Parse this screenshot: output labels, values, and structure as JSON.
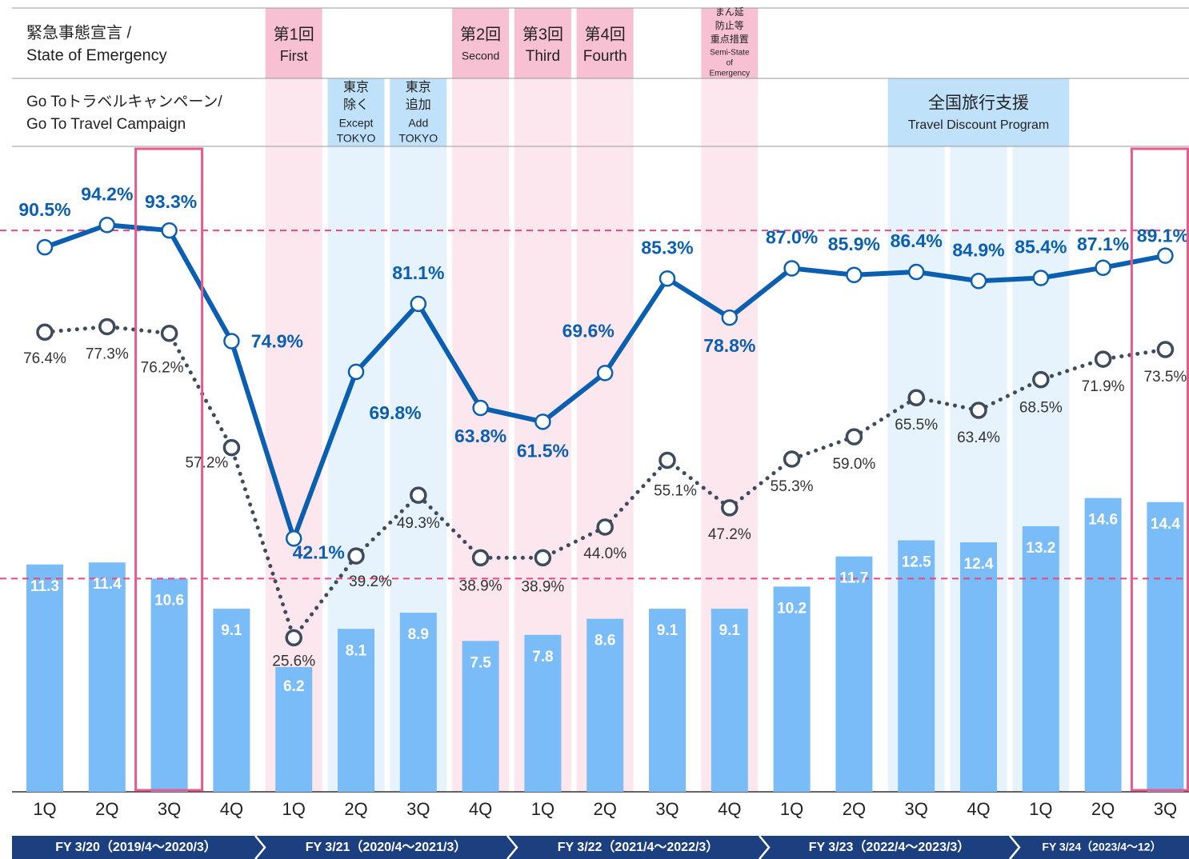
{
  "chart_data": {
    "type": "combo",
    "header": {
      "emergency_label": [
        "緊急事態宣言 /",
        "State of Emergency"
      ],
      "campaign_label": [
        "Go Toトラベルキャンペーン/",
        "Go To Travel Campaign"
      ],
      "emergency": [
        [
          "第1回",
          "First"
        ],
        [
          "第2回",
          "Second"
        ],
        [
          "第3回",
          "Third"
        ],
        [
          "第4回",
          "Fourth"
        ],
        [
          "まん延",
          "防止等",
          "重点措置",
          "Semi-State",
          "of",
          "Emergency"
        ]
      ],
      "campaign": [
        [
          "東京",
          "除く",
          "Except",
          "TOKYO"
        ],
        [
          "東京",
          "追加",
          "Add",
          "TOKYO"
        ],
        [
          "全国旅行支援",
          "Travel Discount Program"
        ]
      ]
    },
    "categories": [
      "1Q",
      "2Q",
      "3Q",
      "4Q",
      "1Q",
      "2Q",
      "3Q",
      "4Q",
      "1Q",
      "2Q",
      "3Q",
      "4Q",
      "1Q",
      "2Q",
      "3Q",
      "4Q",
      "1Q",
      "2Q",
      "3Q"
    ],
    "fiscal_years": [
      "FY 3/20（2019/4～2020/3）",
      "FY 3/21（2020/4～2021/3）",
      "FY 3/22（2021/4～2022/3）",
      "FY 3/23（2022/4～2023/3）",
      "FY 3/24（2023/4～12）"
    ],
    "ylim": [
      0,
      107
    ],
    "y2lim": [
      0,
      32
    ],
    "series": [
      {
        "type": "bar",
        "axis": "y2",
        "color": "#79bcf7",
        "values": [
          11.3,
          11.4,
          10.6,
          9.1,
          6.2,
          8.1,
          8.9,
          7.5,
          7.8,
          8.6,
          9.1,
          9.1,
          10.2,
          11.7,
          12.5,
          12.4,
          13.2,
          14.6,
          14.4
        ]
      },
      {
        "type": "line",
        "style": "solid",
        "color": "#0b5fb1",
        "values": [
          90.5,
          94.2,
          93.3,
          74.9,
          42.1,
          69.8,
          81.1,
          63.8,
          61.5,
          69.6,
          85.3,
          78.8,
          87.0,
          85.9,
          86.4,
          84.9,
          85.4,
          87.1,
          89.1
        ],
        "value_labels": [
          "90.5%",
          "94.2%",
          "93.3%",
          "74.9%",
          "42.1%",
          "69.8%",
          "81.1%",
          "63.8%",
          "61.5%",
          "69.6%",
          "85.3%",
          "78.8%",
          "87.0%",
          "85.9%",
          "86.4%",
          "84.9%",
          "85.4%",
          "87.1%",
          "89.1%"
        ]
      },
      {
        "type": "line",
        "style": "dotted",
        "color": "#3e4b5d",
        "values": [
          76.4,
          77.3,
          76.2,
          57.2,
          25.6,
          39.2,
          49.3,
          38.9,
          38.9,
          44.0,
          55.1,
          47.2,
          55.3,
          59.0,
          65.5,
          63.4,
          68.5,
          71.9,
          73.5
        ],
        "value_labels": [
          "76.4%",
          "77.3%",
          "76.2%",
          "57.2%",
          "25.6%",
          "39.2%",
          "49.3%",
          "38.9%",
          "38.9%",
          "44.0%",
          "55.1%",
          "47.2%",
          "55.3%",
          "59.0%",
          "65.5%",
          "63.4%",
          "68.5%",
          "71.9%",
          "73.5%"
        ]
      }
    ],
    "reference_color": "#e8487c",
    "highlight_color": "#e85a8a"
  }
}
